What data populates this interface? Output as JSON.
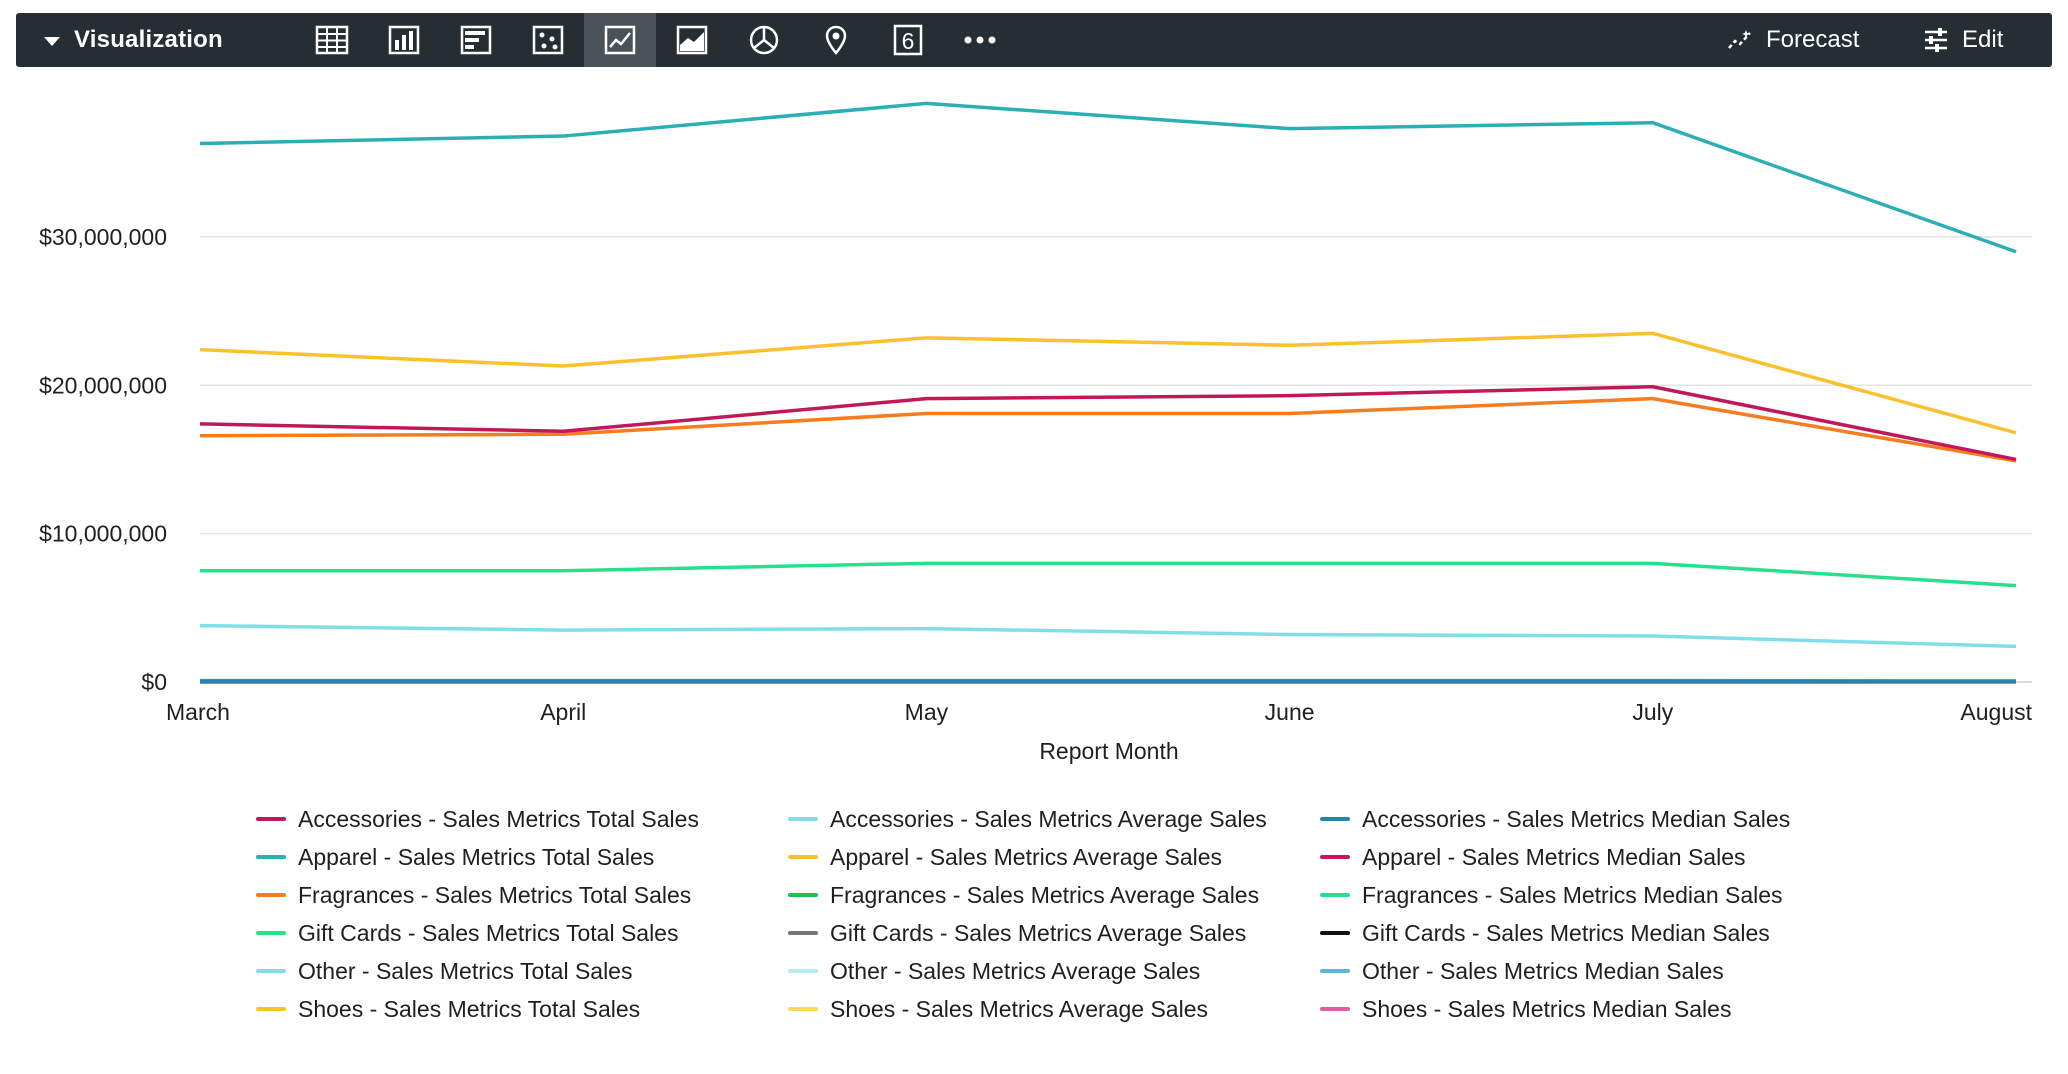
{
  "toolbar": {
    "title": "Visualization",
    "viz_types": [
      {
        "name": "table-viz-icon",
        "icon": "table",
        "active": false
      },
      {
        "name": "column-viz-icon",
        "icon": "column",
        "active": false
      },
      {
        "name": "bar-viz-icon",
        "icon": "bar",
        "active": false
      },
      {
        "name": "scatter-viz-icon",
        "icon": "scatter",
        "active": false
      },
      {
        "name": "line-viz-icon",
        "icon": "line",
        "active": true
      },
      {
        "name": "area-viz-icon",
        "icon": "area",
        "active": false
      },
      {
        "name": "pie-viz-icon",
        "icon": "pie",
        "active": false
      },
      {
        "name": "map-pin-viz-icon",
        "icon": "map-pin",
        "active": false
      },
      {
        "name": "single-value-viz-icon",
        "icon": "single-value",
        "active": false
      },
      {
        "name": "more-viz-icon",
        "icon": "more",
        "active": false
      }
    ],
    "single_value_glyph": "6",
    "forecast_label": "Forecast",
    "edit_label": "Edit",
    "background": "#262d33",
    "active_background": "#4a5259"
  },
  "chart_data": {
    "type": "line",
    "xlabel": "Report Month",
    "ylabel": "",
    "categories": [
      "March",
      "April",
      "May",
      "June",
      "July",
      "August"
    ],
    "y_ticks": [
      0,
      10000000,
      20000000,
      30000000
    ],
    "y_tick_labels": [
      "$0",
      "$10,000,000",
      "$20,000,000",
      "$30,000,000"
    ],
    "ylim": [
      0,
      39500000
    ],
    "grid": true,
    "legend_position": "bottom",
    "series": [
      {
        "name": "Accessories - Sales Metrics Total Sales",
        "color": "#c2185b",
        "values": [
          17400000,
          16900000,
          19100000,
          19300000,
          19900000,
          15000000
        ]
      },
      {
        "name": "Accessories - Sales Metrics Average Sales",
        "color": "#80deea",
        "values": [
          3800000,
          3500000,
          3600000,
          3200000,
          3100000,
          2400000
        ]
      },
      {
        "name": "Accessories - Sales Metrics Median Sales",
        "color": "#1e88b5",
        "values": [
          70000,
          70000,
          70000,
          70000,
          70000,
          60000
        ]
      },
      {
        "name": "Apparel - Sales Metrics Total Sales",
        "color": "#2bafb5",
        "values": [
          36300000,
          36800000,
          39000000,
          37300000,
          37700000,
          29000000
        ]
      },
      {
        "name": "Apparel - Sales Metrics Average Sales",
        "color": "#fbc02d",
        "values": [
          22400000,
          21300000,
          23200000,
          22700000,
          23500000,
          16800000
        ]
      },
      {
        "name": "Apparel - Sales Metrics Median Sales",
        "color": "#c2185b",
        "values": [
          60000,
          60000,
          60000,
          60000,
          60000,
          50000
        ]
      },
      {
        "name": "Fragrances - Sales Metrics Total Sales",
        "color": "#f57c1f",
        "values": [
          16600000,
          16700000,
          18100000,
          18100000,
          19100000,
          14900000
        ]
      },
      {
        "name": "Fragrances - Sales Metrics Average Sales",
        "color": "#1ec24a",
        "values": [
          50000,
          50000,
          50000,
          50000,
          50000,
          40000
        ]
      },
      {
        "name": "Fragrances - Sales Metrics Median Sales",
        "color": "#26e08a",
        "values": [
          40000,
          40000,
          40000,
          40000,
          40000,
          40000
        ]
      },
      {
        "name": "Gift Cards - Sales Metrics Total Sales",
        "color": "#26e08a",
        "values": [
          7500000,
          7500000,
          8000000,
          8000000,
          8000000,
          6500000
        ]
      },
      {
        "name": "Gift Cards - Sales Metrics Average Sales",
        "color": "#757575",
        "values": [
          30000,
          30000,
          30000,
          30000,
          30000,
          30000
        ]
      },
      {
        "name": "Gift Cards - Sales Metrics Median Sales",
        "color": "#111111",
        "values": [
          20000,
          20000,
          20000,
          20000,
          20000,
          20000
        ]
      },
      {
        "name": "Other - Sales Metrics Total Sales",
        "color": "#80deea",
        "values": [
          100000,
          100000,
          100000,
          100000,
          100000,
          90000
        ]
      },
      {
        "name": "Other - Sales Metrics Average Sales",
        "color": "#b2ebf2",
        "values": [
          20000,
          20000,
          20000,
          20000,
          20000,
          20000
        ]
      },
      {
        "name": "Other - Sales Metrics Median Sales",
        "color": "#5bb8d6",
        "values": [
          10000,
          10000,
          10000,
          10000,
          10000,
          10000
        ]
      },
      {
        "name": "Shoes - Sales Metrics Total Sales",
        "color": "#fbc02d",
        "values": [
          90000,
          90000,
          90000,
          90000,
          90000,
          80000
        ]
      },
      {
        "name": "Shoes - Sales Metrics Average Sales",
        "color": "#fdd85d",
        "values": [
          10000,
          10000,
          10000,
          10000,
          10000,
          10000
        ]
      },
      {
        "name": "Shoes - Sales Metrics Median Sales",
        "color": "#e05ba0",
        "values": [
          10000,
          10000,
          10000,
          10000,
          10000,
          10000
        ]
      }
    ]
  }
}
